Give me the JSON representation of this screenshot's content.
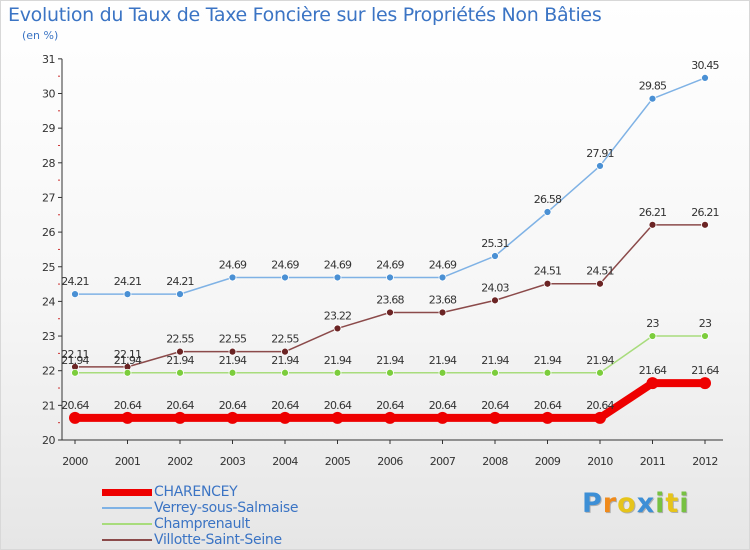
{
  "chart_data": {
    "type": "line",
    "title": "Evolution du Taux de Taxe Foncière sur les Propriétés Non Bâties",
    "subtitle": "(en %)",
    "x": [
      "2000",
      "2001",
      "2002",
      "2003",
      "2004",
      "2005",
      "2006",
      "2007",
      "2008",
      "2009",
      "2010",
      "2011",
      "2012"
    ],
    "ylim": [
      20,
      31
    ],
    "yticks": [
      "20",
      "21",
      "22",
      "23",
      "24",
      "25",
      "26",
      "27",
      "28",
      "29",
      "30",
      "31"
    ],
    "grid": false,
    "legend_position": "bottom-left",
    "series": [
      {
        "name": "CHARENCEY",
        "color": "#ee0000",
        "values": [
          20.64,
          20.64,
          20.64,
          20.64,
          20.64,
          20.64,
          20.64,
          20.64,
          20.64,
          20.64,
          20.64,
          21.64,
          21.64
        ],
        "labels": [
          "20.64",
          "20.64",
          "20.64",
          "20.64",
          "20.64",
          "20.64",
          "20.64",
          "20.64",
          "20.64",
          "20.64",
          "20.64",
          "21.64",
          "21.64"
        ]
      },
      {
        "name": "Verrey-sous-Salmaise",
        "color": "#7fb2e5",
        "point_color": "#4a90d4",
        "values": [
          24.21,
          24.21,
          24.21,
          24.69,
          24.69,
          24.69,
          24.69,
          24.69,
          25.31,
          26.58,
          27.91,
          29.85,
          30.45
        ],
        "labels": [
          "24.21",
          "24.21",
          "24.21",
          "24.69",
          "24.69",
          "24.69",
          "24.69",
          "24.69",
          "25.31",
          "26.58",
          "27.91",
          "29.85",
          "30.45"
        ]
      },
      {
        "name": "Champrenault",
        "color": "#a8dc7c",
        "point_color": "#7ccd3c",
        "values": [
          21.94,
          21.94,
          21.94,
          21.94,
          21.94,
          21.94,
          21.94,
          21.94,
          21.94,
          21.94,
          21.94,
          23,
          23
        ],
        "labels": [
          "21.94",
          "21.94",
          "21.94",
          "21.94",
          "21.94",
          "21.94",
          "21.94",
          "21.94",
          "21.94",
          "21.94",
          "21.94",
          "23",
          "23"
        ]
      },
      {
        "name": "Villotte-Saint-Seine",
        "color": "#8b4a4a",
        "point_color": "#6b2424",
        "values": [
          22.11,
          22.11,
          22.55,
          22.55,
          22.55,
          23.22,
          23.68,
          23.68,
          24.03,
          24.51,
          24.51,
          26.21,
          26.21
        ],
        "labels": [
          "22.11",
          "22.11",
          "22.55",
          "22.55",
          "22.55",
          "23.22",
          "23.68",
          "23.68",
          "24.03",
          "24.51",
          "24.51",
          "26.21",
          "26.21"
        ]
      }
    ]
  },
  "logo": {
    "letters": [
      "P",
      "r",
      "o",
      "x",
      "i",
      "t",
      "i"
    ],
    "colors": [
      "#3d8fd6",
      "#f08a1a",
      "#e6c41a",
      "#3d8fd6",
      "#77c142",
      "#e6c41a",
      "#77c142"
    ]
  }
}
